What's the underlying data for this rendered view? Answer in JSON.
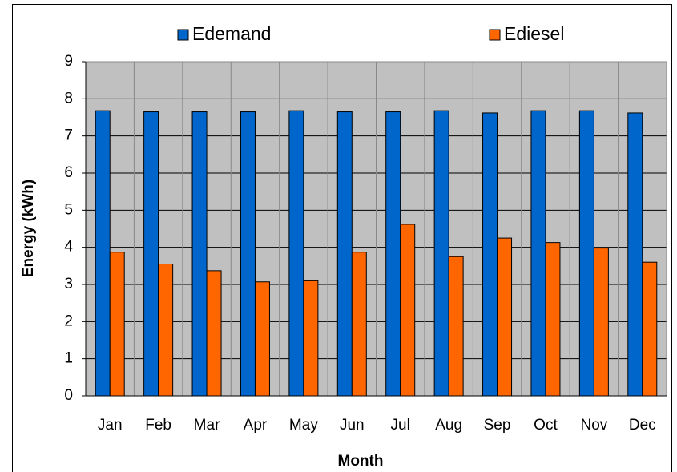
{
  "chart_data": {
    "type": "bar",
    "categories": [
      "Jan",
      "Feb",
      "Mar",
      "Apr",
      "May",
      "Jun",
      "Jul",
      "Aug",
      "Sep",
      "Oct",
      "Nov",
      "Dec"
    ],
    "series": [
      {
        "name": "Edemand",
        "color": "#0066cc",
        "values": [
          7.68,
          7.65,
          7.65,
          7.65,
          7.68,
          7.65,
          7.65,
          7.68,
          7.62,
          7.68,
          7.68,
          7.62
        ]
      },
      {
        "name": "Ediesel",
        "color": "#ff6600",
        "values": [
          3.87,
          3.55,
          3.37,
          3.07,
          3.1,
          3.87,
          4.62,
          3.75,
          4.25,
          4.13,
          3.98,
          3.6
        ]
      }
    ],
    "xlabel": "Month",
    "ylabel": "Energy (kWh)",
    "ylim": [
      0,
      9
    ],
    "yticks": [
      0,
      1,
      2,
      3,
      4,
      5,
      6,
      7,
      8,
      9
    ],
    "grid": true,
    "legend": "top"
  }
}
